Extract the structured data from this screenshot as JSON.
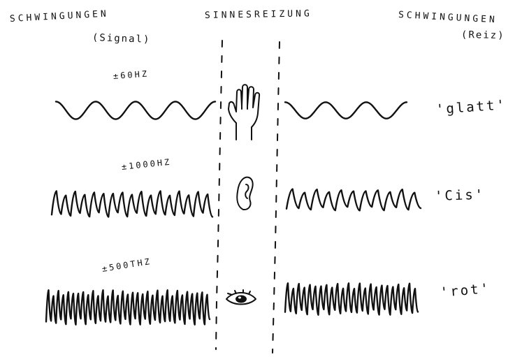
{
  "header": {
    "left_title": "SCHWINGUNGEN",
    "left_subtitle": "(Signal)",
    "center_title": "SINNESREIZUNG",
    "right_title": "SCHWINGUNGEN",
    "right_subtitle": "(Reiz)"
  },
  "rows": [
    {
      "frequency": "±60HZ",
      "sense_icon": "hand-icon",
      "perception": "'glatt'",
      "signal_cycles": 4,
      "stimulus_cycles": 3
    },
    {
      "frequency": "±1000HZ",
      "sense_icon": "ear-icon",
      "perception": "'Cis'",
      "signal_cycles": 17,
      "stimulus_cycles": 11
    },
    {
      "frequency": "±500THZ",
      "sense_icon": "eye-icon",
      "perception": "'rot'",
      "signal_cycles": 33,
      "stimulus_cycles": 24
    }
  ],
  "colors": {
    "ink": "#111111",
    "paper": "#ffffff"
  }
}
